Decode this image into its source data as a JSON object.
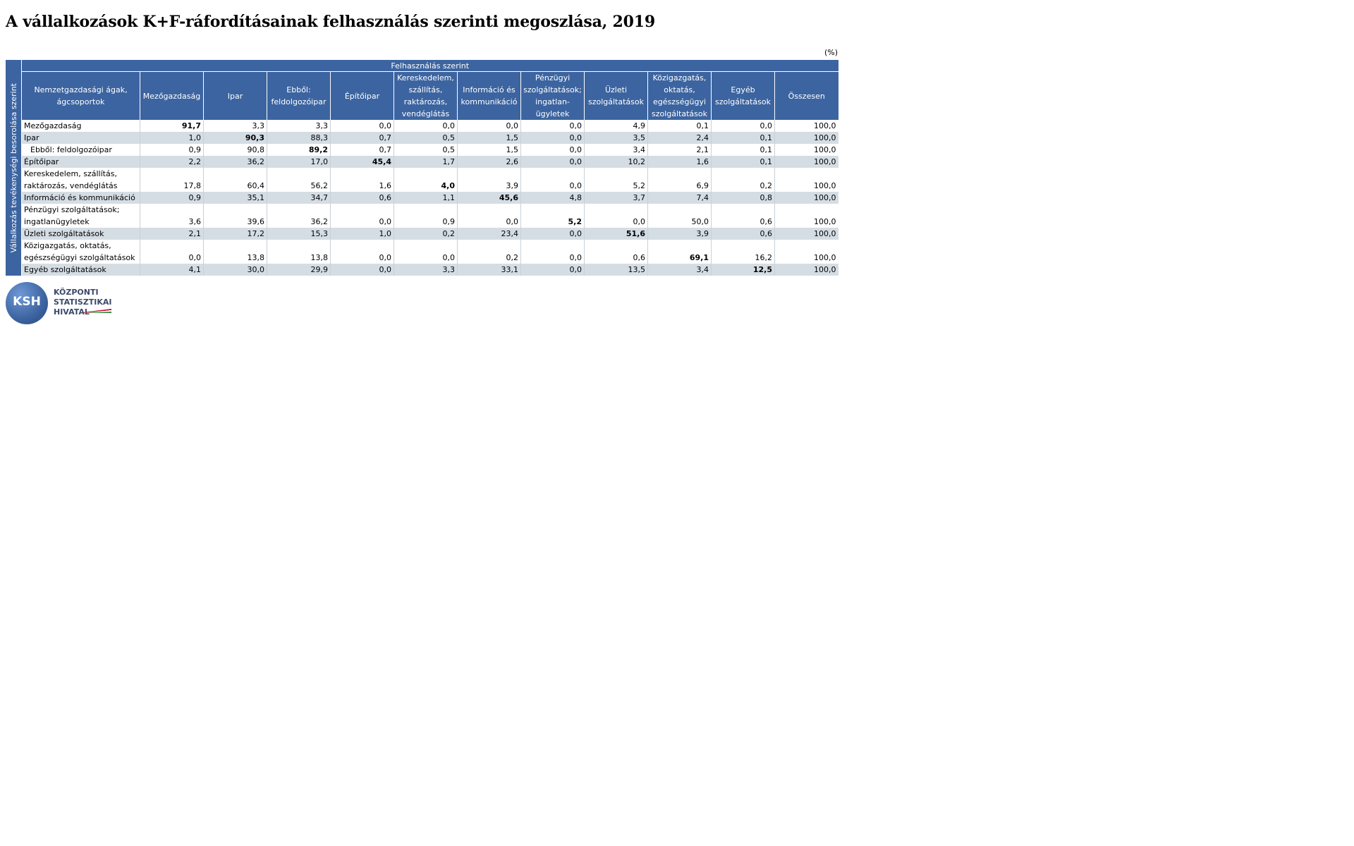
{
  "title": "A vállalkozások K+F-ráfordításainak felhasználás szerinti megoszlása, 2019",
  "unit": "(%)",
  "table": {
    "side_header": "Vállalkozás tevékenységi besorolása szerint",
    "top_header": "Felhasználás szerint",
    "columns": [
      "Nemzetgazdasági ágak, ágcsoportok",
      "Mezőgazdaság",
      "Ipar",
      "Ebből: feldolgozóipar",
      "Építőipar",
      "Kereskedelem, szállítás, raktározás, vendéglátás",
      "Információ és kommunikáció",
      "Pénzügyi szolgáltatások; ingatlan-ügyletek",
      "Üzleti szolgáltatások",
      "Közigazgatás, oktatás, egészségügyi szolgáltatások",
      "Egyéb szolgáltatások",
      "Összesen"
    ],
    "rows": [
      {
        "label": "Mezőgazdaság",
        "values": [
          "91,7",
          "3,3",
          "3,3",
          "0,0",
          "0,0",
          "0,0",
          "0,0",
          "4,9",
          "0,1",
          "0,0",
          "100,0"
        ],
        "bold": 0
      },
      {
        "label": "Ipar",
        "values": [
          "1,0",
          "90,3",
          "88,3",
          "0,7",
          "0,5",
          "1,5",
          "0,0",
          "3,5",
          "2,4",
          "0,1",
          "100,0"
        ],
        "bold": 1
      },
      {
        "label": "Ebből: feldolgozóipar",
        "values": [
          "0,9",
          "90,8",
          "89,2",
          "0,7",
          "0,5",
          "1,5",
          "0,0",
          "3,4",
          "2,1",
          "0,1",
          "100,0"
        ],
        "bold": 2
      },
      {
        "label": "Építőipar",
        "values": [
          "2,2",
          "36,2",
          "17,0",
          "45,4",
          "1,7",
          "2,6",
          "0,0",
          "10,2",
          "1,6",
          "0,1",
          "100,0"
        ],
        "bold": 3
      },
      {
        "label": "Kereskedelem, szállítás, raktározás, vendéglátás",
        "values": [
          "17,8",
          "60,4",
          "56,2",
          "1,6",
          "4,0",
          "3,9",
          "0,0",
          "5,2",
          "6,9",
          "0,2",
          "100,0"
        ],
        "bold": 4
      },
      {
        "label": "Információ és kommunikáció",
        "values": [
          "0,9",
          "35,1",
          "34,7",
          "0,6",
          "1,1",
          "45,6",
          "4,8",
          "3,7",
          "7,4",
          "0,8",
          "100,0"
        ],
        "bold": 5
      },
      {
        "label": "Pénzügyi szolgáltatások; ingatlanügyletek",
        "values": [
          "3,6",
          "39,6",
          "36,2",
          "0,0",
          "0,9",
          "0,0",
          "5,2",
          "0,0",
          "50,0",
          "0,6",
          "100,0"
        ],
        "bold": 6
      },
      {
        "label": "Üzleti szolgáltatások",
        "values": [
          "2,1",
          "17,2",
          "15,3",
          "1,0",
          "0,2",
          "23,4",
          "0,0",
          "51,6",
          "3,9",
          "0,6",
          "100,0"
        ],
        "bold": 7
      },
      {
        "label": "Közigazgatás, oktatás, egészségügyi szolgáltatások",
        "values": [
          "0,0",
          "13,8",
          "13,8",
          "0,0",
          "0,0",
          "0,2",
          "0,0",
          "0,6",
          "69,1",
          "16,2",
          "100,0"
        ],
        "bold": 8
      },
      {
        "label": "Egyéb szolgáltatások",
        "values": [
          "4,1",
          "30,0",
          "29,9",
          "0,0",
          "3,3",
          "33,1",
          "0,0",
          "13,5",
          "3,4",
          "12,5",
          "100,0"
        ],
        "bold": 9
      }
    ]
  },
  "logo": {
    "abbr": "KSH",
    "lines": [
      "KÖZPONTI",
      "STATISZTIKAI",
      "HIVATAL"
    ]
  },
  "colors": {
    "header_bg": "#3c64a0",
    "stripe_bg": "#d5dde4"
  }
}
